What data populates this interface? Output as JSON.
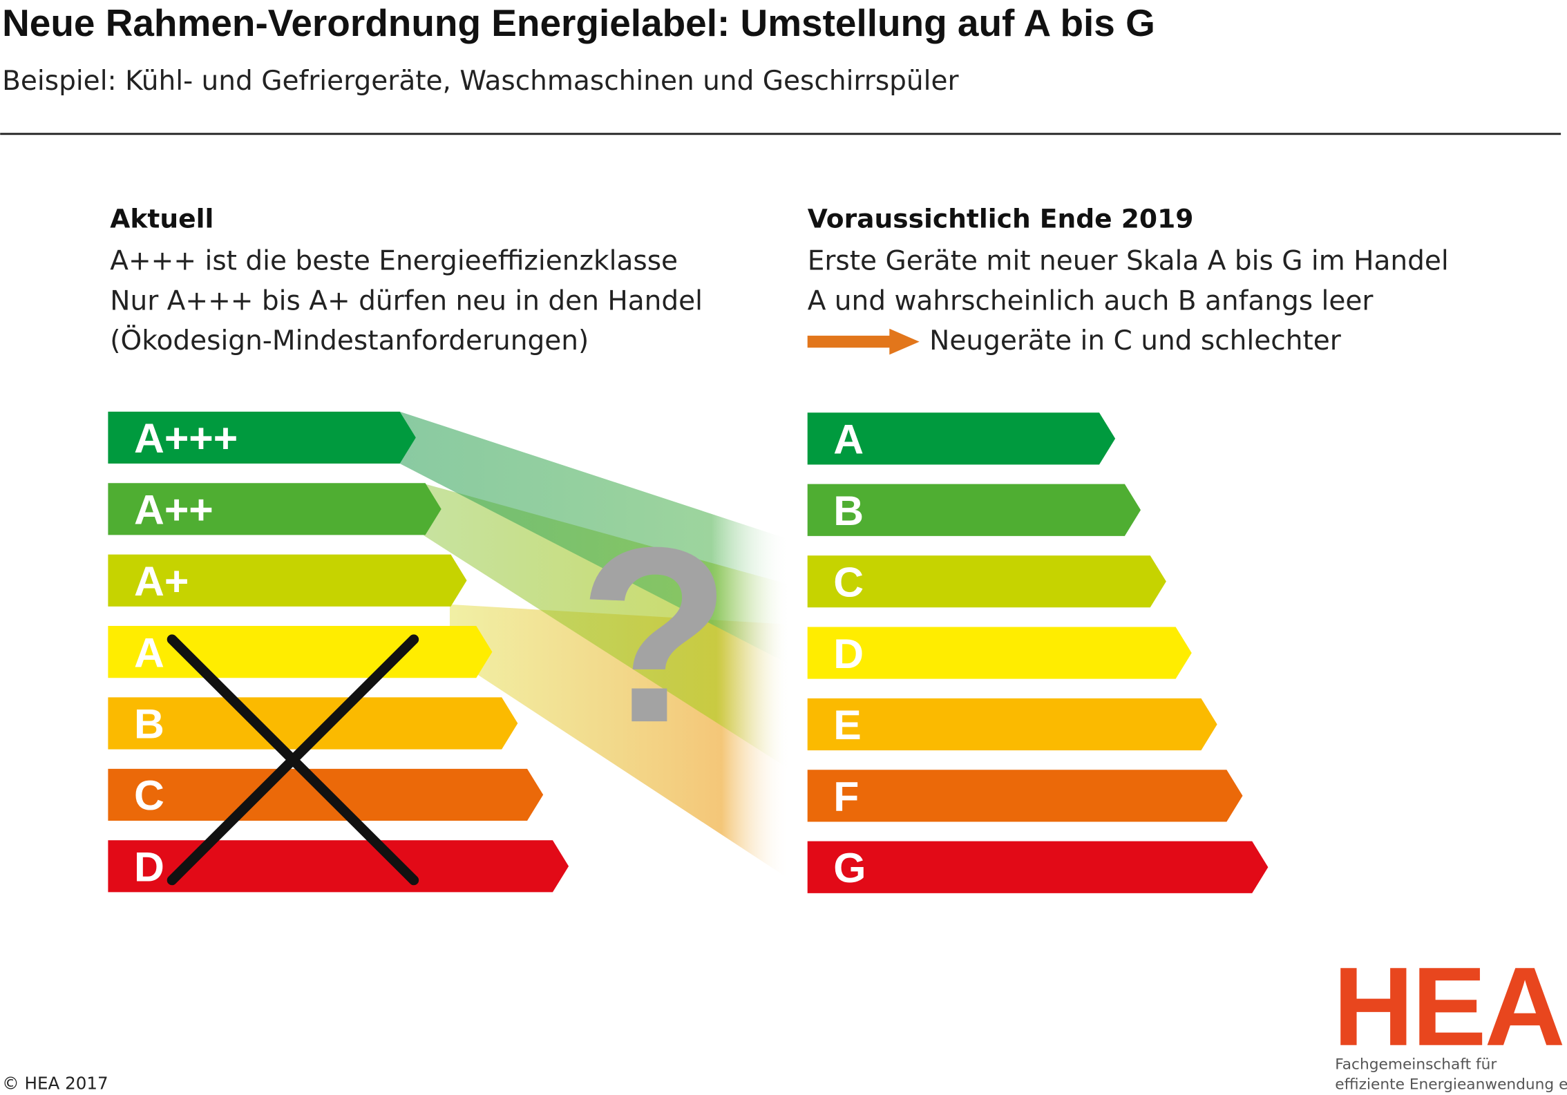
{
  "title": "Neue Rahmen-Verordnung Energielabel: Umstellung auf A bis G",
  "subtitle": "Beispiel: Kühl- und Gefriergeräte, Waschmaschinen und Geschirrspüler",
  "left": {
    "heading": "Aktuell",
    "lines": [
      "A+++ ist die beste Energieeffizienzklasse",
      "Nur  A+++ bis A+ dürfen neu in den Handel",
      "(Ökodesign-Mindestanforderungen)"
    ],
    "classes": [
      "A+++",
      "A++",
      "A+",
      "A",
      "B",
      "C",
      "D"
    ]
  },
  "question_mark": "?",
  "right": {
    "heading": "Voraussichtlich Ende 2019",
    "lines": [
      "Erste Geräte mit neuer Skala A bis G im Handel",
      "A und wahrscheinlich auch B anfangs leer"
    ],
    "arrow_text": "Neugeräte in C und schlechter",
    "classes": [
      "A",
      "B",
      "C",
      "D",
      "E",
      "F",
      "G"
    ]
  },
  "footer": {
    "copyright": "© HEA 2017",
    "logo": "HEA",
    "logo_lines": [
      "Fachgemeinschaft für",
      "effiziente Energieanwendung e. V."
    ]
  }
}
